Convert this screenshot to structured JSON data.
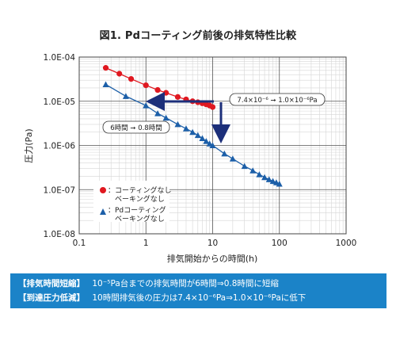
{
  "chart_data": {
    "type": "scatter",
    "title": "図1. Pdコーティング前後の排気特性比較",
    "xlabel": "排気開始からの時間(h)",
    "ylabel": "圧力(Pa)",
    "x_scale": "log",
    "y_scale": "log",
    "xlim": [
      0.1,
      1000
    ],
    "ylim": [
      1e-08,
      0.0001
    ],
    "x_ticks": [
      "0.1",
      "1",
      "10",
      "100",
      "1000"
    ],
    "y_ticks": [
      "1.0E-04",
      "1.0E-05",
      "1.0E-06",
      "1.0E-07",
      "1.0E-08"
    ],
    "grid": true,
    "legend_position": "lower-left",
    "series": [
      {
        "name": "：コーティングなし ベーキングなし",
        "marker": "circle",
        "color": "#e01820",
        "points": [
          [
            0.25,
            5.7e-05
          ],
          [
            0.4,
            4.2e-05
          ],
          [
            0.6,
            3.2e-05
          ],
          [
            1.0,
            2.3e-05
          ],
          [
            1.5,
            1.8e-05
          ],
          [
            2.0,
            1.55e-05
          ],
          [
            3.0,
            1.25e-05
          ],
          [
            4.0,
            1.1e-05
          ],
          [
            5.0,
            1e-05
          ],
          [
            6.0,
            9.5e-06
          ],
          [
            7.0,
            9e-06
          ],
          [
            8.0,
            8.5e-06
          ],
          [
            9.0,
            8e-06
          ],
          [
            10.0,
            7.4e-06
          ]
        ]
      },
      {
        "name": "：Pdコーティング ベーキングなし",
        "marker": "triangle",
        "color": "#1c5fa8",
        "points": [
          [
            0.25,
            2.4e-05
          ],
          [
            0.5,
            1.3e-05
          ],
          [
            1.0,
            8e-06
          ],
          [
            1.5,
            5.3e-06
          ],
          [
            2.0,
            4.2e-06
          ],
          [
            3.0,
            3e-06
          ],
          [
            4.0,
            2.4e-06
          ],
          [
            5.0,
            2e-06
          ],
          [
            6.0,
            1.7e-06
          ],
          [
            7.0,
            1.45e-06
          ],
          [
            8.0,
            1.25e-06
          ],
          [
            9.0,
            1.1e-06
          ],
          [
            10.0,
            1e-06
          ],
          [
            15.0,
            6.5e-07
          ],
          [
            20.0,
            5e-07
          ],
          [
            30.0,
            3.4e-07
          ],
          [
            40.0,
            2.7e-07
          ],
          [
            50.0,
            2.2e-07
          ],
          [
            60.0,
            1.9e-07
          ],
          [
            70.0,
            1.7e-07
          ],
          [
            80.0,
            1.55e-07
          ],
          [
            90.0,
            1.45e-07
          ],
          [
            100.0,
            1.35e-07
          ]
        ]
      }
    ],
    "annotations": [
      {
        "text": "6時間 ➞ 0.8時間"
      },
      {
        "text": "7.4×10⁻⁶ ➞ 1.0×10⁻⁶Pa"
      }
    ]
  },
  "note": {
    "background": "#1b83c8",
    "rows": [
      {
        "tag": "【排気時間短縮】",
        "text": "10⁻⁵Pa台までの排気時間が6時間⇒0.8時間に短縮"
      },
      {
        "tag": "【到達圧力低減】",
        "text": "10時間排気後の圧力は7.4×10⁻⁶Pa⇒1.0×10⁻⁶Paに低下"
      }
    ]
  }
}
